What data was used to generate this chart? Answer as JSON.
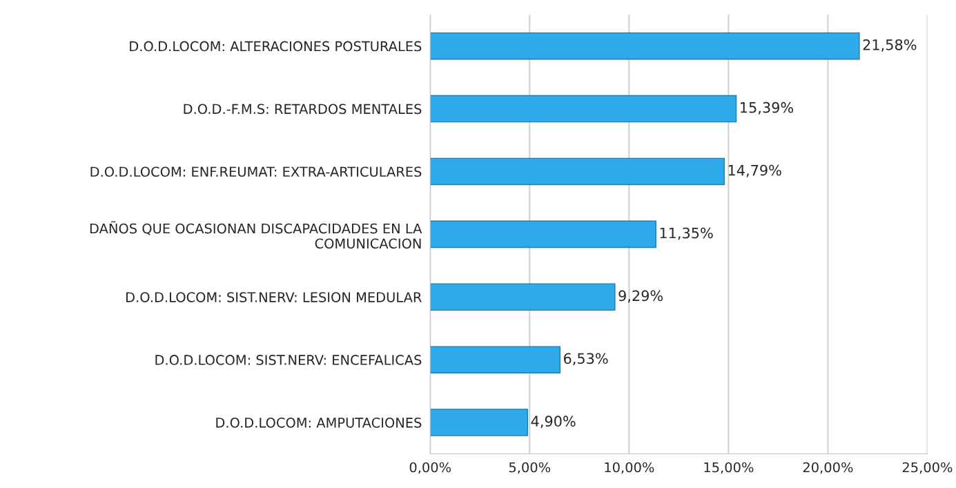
{
  "chart_data": {
    "type": "bar",
    "orientation": "horizontal",
    "categories": [
      "D.O.D.LOCOM: ALTERACIONES POSTURALES",
      "D.O.D.-F.M.S: RETARDOS MENTALES",
      "D.O.D.LOCOM: ENF.REUMAT: EXTRA-ARTICULARES",
      "DAÑOS QUE OCASIONAN DISCAPACIDADES EN LA\nCOMUNICACION",
      "D.O.D.LOCOM: SIST.NERV: LESION MEDULAR",
      "D.O.D.LOCOM: SIST.NERV: ENCEFALICAS",
      "D.O.D.LOCOM: AMPUTACIONES"
    ],
    "values": [
      21.58,
      15.39,
      14.79,
      11.35,
      9.29,
      6.53,
      4.9
    ],
    "value_labels": [
      "21,58%",
      "15,39%",
      "14,79%",
      "11,35%",
      "9,29%",
      "6,53%",
      "4,90%"
    ],
    "color": "#2eaaea",
    "xlim": [
      0,
      25
    ],
    "xticks": [
      {
        "value": 0,
        "label": "0,00%"
      },
      {
        "value": 5,
        "label": "5,00%"
      },
      {
        "value": 10,
        "label": "10,00%"
      },
      {
        "value": 15,
        "label": "15,00%"
      },
      {
        "value": 20,
        "label": "20,00%"
      },
      {
        "value": 25,
        "label": "25,00%"
      }
    ],
    "grid": "x"
  }
}
